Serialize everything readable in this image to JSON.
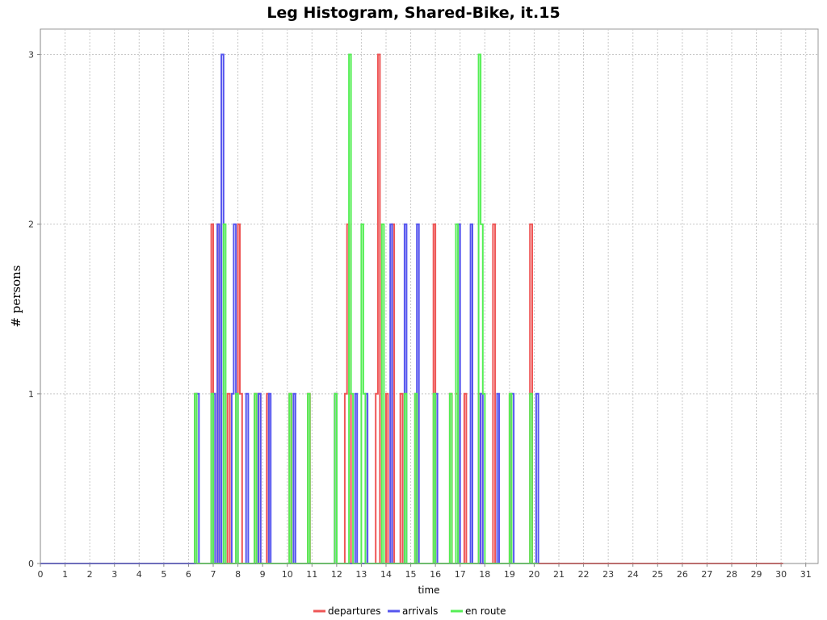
{
  "chart_data": {
    "type": "line",
    "title": "Leg Histogram, Shared-Bike, it.15",
    "xlabel": "time",
    "ylabel": "# persons",
    "xlim": [
      0,
      31.5
    ],
    "ylim": [
      0,
      3.15
    ],
    "x_ticks": [
      "0",
      "1",
      "2",
      "3",
      "4",
      "5",
      "6",
      "7",
      "8",
      "9",
      "10",
      "11",
      "12",
      "13",
      "14",
      "15",
      "16",
      "17",
      "18",
      "19",
      "20",
      "21",
      "22",
      "23",
      "24",
      "25",
      "26",
      "27",
      "28",
      "29",
      "30",
      "31"
    ],
    "y_ticks": [
      "0",
      "1",
      "2",
      "3"
    ],
    "grid": true,
    "legend_position": "bottom",
    "bin_width": 0.08333,
    "series": [
      {
        "name": "departures",
        "color": "#ee5555",
        "points": [
          [
            0,
            0
          ],
          [
            6.25,
            1
          ],
          [
            6.33,
            0
          ],
          [
            6.92,
            2
          ],
          [
            7.0,
            1
          ],
          [
            7.08,
            0
          ],
          [
            7.17,
            2
          ],
          [
            7.25,
            0
          ],
          [
            7.58,
            1
          ],
          [
            7.67,
            0
          ],
          [
            7.92,
            1
          ],
          [
            8.0,
            2
          ],
          [
            8.08,
            1
          ],
          [
            8.17,
            0
          ],
          [
            8.67,
            1
          ],
          [
            8.75,
            0
          ],
          [
            8.83,
            1
          ],
          [
            8.92,
            0
          ],
          [
            9.17,
            1
          ],
          [
            9.25,
            0
          ],
          [
            10.08,
            1
          ],
          [
            10.17,
            0
          ],
          [
            10.83,
            1
          ],
          [
            10.92,
            0
          ],
          [
            11.92,
            1
          ],
          [
            12.0,
            0
          ],
          [
            12.33,
            1
          ],
          [
            12.42,
            2
          ],
          [
            12.5,
            1
          ],
          [
            12.58,
            0
          ],
          [
            13.58,
            1
          ],
          [
            13.67,
            3
          ],
          [
            13.75,
            0
          ],
          [
            14.0,
            1
          ],
          [
            14.08,
            0
          ],
          [
            14.25,
            2
          ],
          [
            14.33,
            0
          ],
          [
            14.58,
            1
          ],
          [
            14.67,
            0
          ],
          [
            15.17,
            1
          ],
          [
            15.25,
            0
          ],
          [
            15.92,
            2
          ],
          [
            16.0,
            0
          ],
          [
            16.58,
            1
          ],
          [
            16.67,
            0
          ],
          [
            16.83,
            1
          ],
          [
            16.92,
            0
          ],
          [
            17.17,
            1
          ],
          [
            17.25,
            0
          ],
          [
            17.75,
            1
          ],
          [
            17.83,
            0
          ],
          [
            18.33,
            2
          ],
          [
            18.42,
            0
          ],
          [
            19.0,
            1
          ],
          [
            19.08,
            0
          ],
          [
            19.83,
            2
          ],
          [
            19.92,
            0
          ],
          [
            30.08,
            0
          ]
        ]
      },
      {
        "name": "arrivals",
        "color": "#5555ee",
        "points": [
          [
            0,
            0
          ],
          [
            6.33,
            1
          ],
          [
            6.42,
            0
          ],
          [
            7.0,
            1
          ],
          [
            7.08,
            0
          ],
          [
            7.17,
            2
          ],
          [
            7.25,
            0
          ],
          [
            7.33,
            3
          ],
          [
            7.42,
            0
          ],
          [
            7.75,
            1
          ],
          [
            7.83,
            2
          ],
          [
            7.92,
            1
          ],
          [
            8.0,
            0
          ],
          [
            8.33,
            1
          ],
          [
            8.42,
            0
          ],
          [
            8.83,
            1
          ],
          [
            8.92,
            0
          ],
          [
            9.25,
            1
          ],
          [
            9.33,
            0
          ],
          [
            10.25,
            1
          ],
          [
            10.33,
            0
          ],
          [
            11.92,
            1
          ],
          [
            12.0,
            0
          ],
          [
            12.75,
            1
          ],
          [
            12.83,
            0
          ],
          [
            13.17,
            1
          ],
          [
            13.25,
            0
          ],
          [
            14.17,
            2
          ],
          [
            14.25,
            0
          ],
          [
            14.75,
            2
          ],
          [
            14.83,
            0
          ],
          [
            15.25,
            2
          ],
          [
            15.33,
            0
          ],
          [
            16.0,
            1
          ],
          [
            16.08,
            0
          ],
          [
            16.92,
            2
          ],
          [
            17.0,
            0
          ],
          [
            17.42,
            2
          ],
          [
            17.5,
            0
          ],
          [
            17.83,
            1
          ],
          [
            17.92,
            0
          ],
          [
            18.5,
            1
          ],
          [
            18.58,
            0
          ],
          [
            19.08,
            1
          ],
          [
            19.17,
            0
          ],
          [
            20.08,
            1
          ],
          [
            20.17,
            0
          ]
        ]
      },
      {
        "name": "en route",
        "color": "#55ee55",
        "points": [
          [
            6.25,
            0
          ],
          [
            6.25,
            1
          ],
          [
            6.42,
            0
          ],
          [
            6.92,
            1
          ],
          [
            7.42,
            2
          ],
          [
            7.92,
            1
          ],
          [
            8.08,
            0
          ],
          [
            8.67,
            1
          ],
          [
            9.33,
            0
          ],
          [
            10.08,
            1
          ],
          [
            10.33,
            0
          ],
          [
            10.83,
            1
          ],
          [
            11.0,
            0
          ],
          [
            11.92,
            1
          ],
          [
            12.5,
            3
          ],
          [
            12.58,
            1
          ],
          [
            13.0,
            2
          ],
          [
            13.08,
            1
          ],
          [
            13.83,
            2
          ],
          [
            14.75,
            1
          ],
          [
            14.83,
            0
          ],
          [
            15.17,
            1
          ],
          [
            15.33,
            0
          ],
          [
            15.92,
            1
          ],
          [
            16.0,
            0
          ],
          [
            16.58,
            1
          ],
          [
            16.83,
            2
          ],
          [
            17.75,
            3
          ],
          [
            17.83,
            2
          ],
          [
            17.92,
            1
          ],
          [
            18.33,
            0
          ],
          [
            19.0,
            1
          ],
          [
            19.17,
            0
          ],
          [
            19.83,
            1
          ],
          [
            20.17,
            0
          ]
        ]
      }
    ]
  }
}
